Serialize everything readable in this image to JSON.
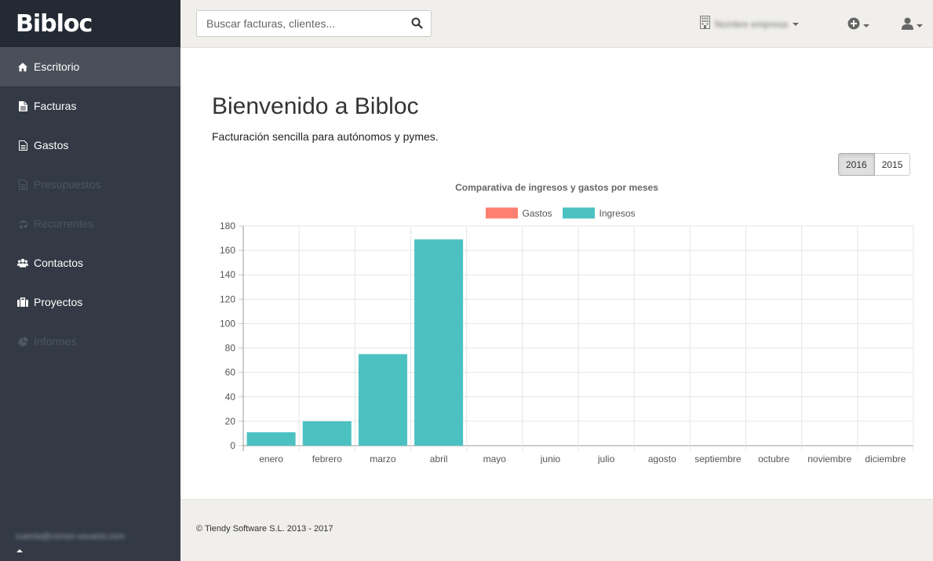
{
  "app": {
    "logo": "Bibloc"
  },
  "sidebar": {
    "items": [
      {
        "label": "Escritorio",
        "icon": "home-icon",
        "active": true,
        "disabled": false
      },
      {
        "label": "Facturas",
        "icon": "document-icon",
        "active": false,
        "disabled": false
      },
      {
        "label": "Gastos",
        "icon": "document-outline-icon",
        "active": false,
        "disabled": false
      },
      {
        "label": "Presupuestos",
        "icon": "document-outline-icon",
        "active": false,
        "disabled": true
      },
      {
        "label": "Recurrentes",
        "icon": "recycle-icon",
        "active": false,
        "disabled": true
      },
      {
        "label": "Contactos",
        "icon": "users-icon",
        "active": false,
        "disabled": false
      },
      {
        "label": "Proyectos",
        "icon": "briefcase-icon",
        "active": false,
        "disabled": false
      },
      {
        "label": "Informes",
        "icon": "pie-chart-icon",
        "active": false,
        "disabled": true
      }
    ],
    "user_email": "cuenta@correo-usuario.com"
  },
  "topbar": {
    "search_placeholder": "Buscar facturas, clientes...",
    "company_name": "Nombre empresa",
    "icons": [
      "building-icon",
      "plus-circle-icon",
      "user-icon"
    ]
  },
  "main": {
    "title": "Bienvenido a Bibloc",
    "subtitle": "Facturación sencilla para autónomos y pymes.",
    "years": [
      "2016",
      "2015"
    ],
    "selected_year": "2016"
  },
  "chart_data": {
    "type": "bar",
    "title": "Comparativa de ingresos y gastos por meses",
    "legend_position": "top",
    "grid": true,
    "categories": [
      "enero",
      "febrero",
      "marzo",
      "abril",
      "mayo",
      "junio",
      "julio",
      "agosto",
      "septiembre",
      "octubre",
      "noviembre",
      "diciembre"
    ],
    "series": [
      {
        "name": "Gastos",
        "color": "#ff8070",
        "values": [
          0,
          0,
          0,
          0,
          0,
          0,
          0,
          0,
          0,
          0,
          0,
          0
        ]
      },
      {
        "name": "Ingresos",
        "color": "#4cc1c2",
        "values": [
          11,
          20,
          75,
          169,
          0,
          0,
          0,
          0,
          0,
          0,
          0,
          0
        ]
      }
    ],
    "ylim": [
      0,
      180
    ],
    "yticks": [
      "0",
      "20",
      "40",
      "60",
      "80",
      "100",
      "120",
      "140",
      "160",
      "180"
    ]
  },
  "footer": {
    "text": "© Tiendy Software S.L. 2013 - 2017"
  }
}
